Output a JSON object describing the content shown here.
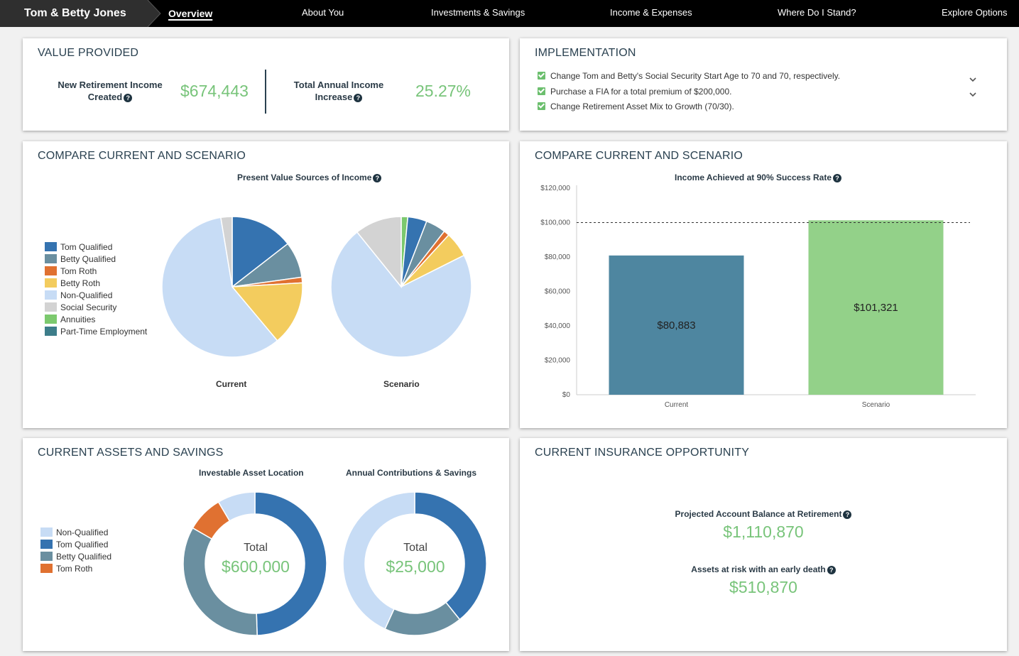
{
  "nav": {
    "client_name": "Tom & Betty Jones",
    "items": [
      "Overview",
      "About You",
      "Investments & Savings",
      "Income & Expenses",
      "Where Do I Stand?",
      "Explore Options"
    ]
  },
  "value_provided": {
    "title": "VALUE PROVIDED",
    "new_income_label": "New Retirement Income Created",
    "new_income_value": "$674,443",
    "annual_increase_label": "Total Annual Income Increase",
    "annual_increase_value": "25.27%"
  },
  "implementation": {
    "title": "IMPLEMENTATION",
    "items": [
      "Change Tom and Betty's Social Security Start Age to 70 and 70, respectively.",
      "Purchase a FIA for a total premium of $200,000.",
      "Change Retirement Asset Mix to Growth (70/30)."
    ]
  },
  "compare_pie": {
    "title": "COMPARE CURRENT AND SCENARIO",
    "chart_title": "Present Value Sources of Income",
    "legend": [
      "Tom Qualified",
      "Betty Qualified",
      "Tom Roth",
      "Betty Roth",
      "Non-Qualified",
      "Social Security",
      "Annuities",
      "Part-Time Employment"
    ],
    "colors": [
      "#3573b0",
      "#6a8fa0",
      "#e07131",
      "#f3cc5e",
      "#c7dcf5",
      "#d3d3d3",
      "#7cc96e",
      "#3d7d8a"
    ],
    "current_label": "Current",
    "scenario_label": "Scenario"
  },
  "compare_bar": {
    "title": "COMPARE CURRENT AND SCENARIO",
    "chart_title": "Income Achieved at 90% Success Rate",
    "y_ticks": [
      "$120,000",
      "$100,000",
      "$80,000",
      "$60,000",
      "$40,000",
      "$20,000",
      "$0"
    ],
    "bar_labels": [
      "$80,883",
      "$101,321"
    ],
    "categories": [
      "Current",
      "Scenario"
    ],
    "colors": [
      "#4e86a0",
      "#93d189"
    ]
  },
  "assets": {
    "title": "CURRENT ASSETS AND SAVINGS",
    "chart1_title": "Investable Asset Location",
    "chart2_title": "Annual Contributions & Savings",
    "legend": [
      "Non-Qualified",
      "Tom Qualified",
      "Betty Qualified",
      "Tom Roth"
    ],
    "total_label": "Total",
    "total1": "$600,000",
    "total2": "$25,000"
  },
  "insurance": {
    "title": "CURRENT INSURANCE OPPORTUNITY",
    "balance_label": "Projected Account Balance at Retirement",
    "balance_value": "$1,110,870",
    "risk_label": "Assets at risk with an early death",
    "risk_value": "$510,870"
  },
  "chart_data": [
    {
      "type": "pie",
      "title": "Present Value Sources of Income",
      "subtitle": "Current",
      "categories": [
        "Tom Qualified",
        "Betty Qualified",
        "Tom Roth",
        "Betty Roth",
        "Non-Qualified",
        "Social Security"
      ],
      "values": [
        14.5,
        8.3,
        1.3,
        14.8,
        58.5,
        2.6
      ],
      "legend_position": "left"
    },
    {
      "type": "pie",
      "title": "Present Value Sources of Income",
      "subtitle": "Scenario",
      "categories": [
        "Annuities",
        "Tom Qualified",
        "Betty Qualified",
        "Tom Roth",
        "Betty Roth",
        "Non-Qualified",
        "Social Security"
      ],
      "values": [
        1.5,
        4.4,
        4.6,
        1.3,
        5.8,
        71.6,
        10.8
      ],
      "legend_position": "left"
    },
    {
      "type": "bar",
      "title": "Income Achieved at 90% Success Rate",
      "categories": [
        "Current",
        "Scenario"
      ],
      "values": [
        80883,
        101321
      ],
      "ylim": [
        0,
        120000
      ],
      "reference_line": 100000,
      "xlabel": "",
      "ylabel": ""
    },
    {
      "type": "pie",
      "title": "Investable Asset Location",
      "categories": [
        "Tom Qualified",
        "Betty Qualified",
        "Tom Roth",
        "Non-Qualified"
      ],
      "values": [
        49.5,
        33.8,
        8.2,
        8.5
      ],
      "donut": true
    },
    {
      "type": "pie",
      "title": "Annual Contributions & Savings",
      "categories": [
        "Tom Qualified",
        "Betty Qualified",
        "Non-Qualified"
      ],
      "values": [
        39.2,
        17.6,
        43.2
      ],
      "donut": true
    }
  ]
}
